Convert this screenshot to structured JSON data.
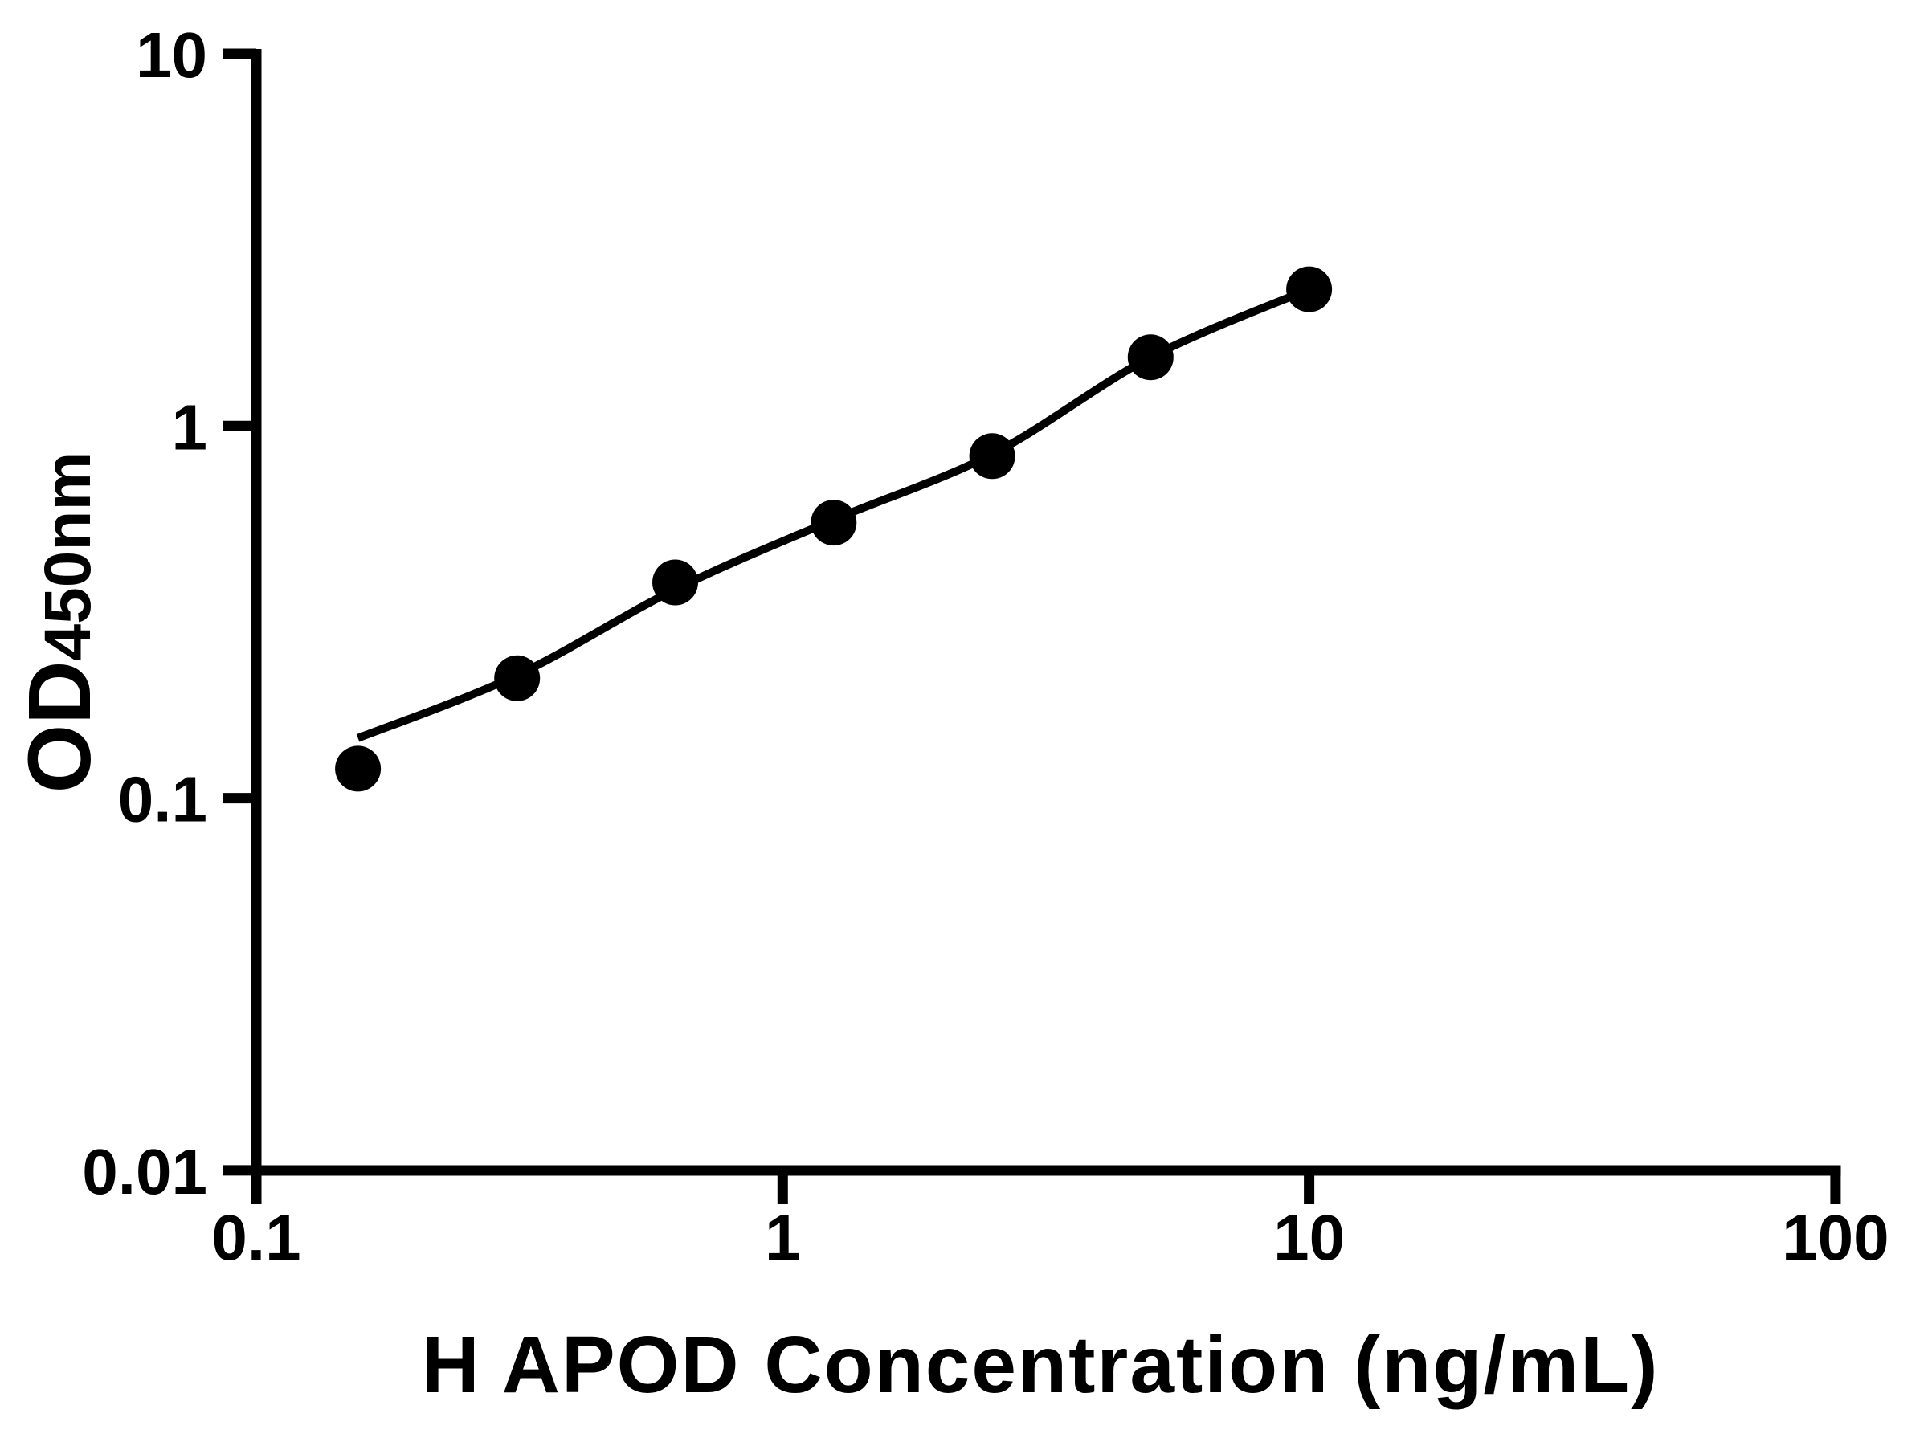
{
  "figure": {
    "background": "#ffffff",
    "ink": "#000000"
  },
  "chart_data": {
    "type": "scatter",
    "title": "",
    "xlabel": "H APOD Concentration (ng/mL)",
    "ylabel_main": "OD",
    "ylabel_sub": "450nm",
    "x_scale": "log",
    "y_scale": "log",
    "xlim": [
      0.1,
      100
    ],
    "ylim": [
      0.01,
      10
    ],
    "x_ticks": [
      0.1,
      1,
      10,
      100
    ],
    "x_tick_labels": [
      "0.1",
      "1",
      "10",
      "100"
    ],
    "y_ticks": [
      10,
      1,
      0.1,
      0.01
    ],
    "y_tick_labels": [
      "10",
      "1",
      "0.1",
      "0.01"
    ],
    "grid": false,
    "legend": null,
    "series": [
      {
        "name": "standard-points",
        "marker": "filled-circle",
        "color": "#000000",
        "x": [
          0.156,
          0.313,
          0.625,
          1.25,
          2.5,
          5,
          10
        ],
        "y": [
          0.12,
          0.21,
          0.38,
          0.55,
          0.83,
          1.53,
          2.33
        ]
      }
    ],
    "fit_curve": {
      "name": "standard-curve-fit",
      "color": "#000000",
      "x": [
        0.156,
        0.313,
        0.625,
        1.25,
        2.5,
        5,
        10
      ],
      "y": [
        0.145,
        0.214,
        0.364,
        0.56,
        0.84,
        1.53,
        2.33
      ]
    }
  }
}
